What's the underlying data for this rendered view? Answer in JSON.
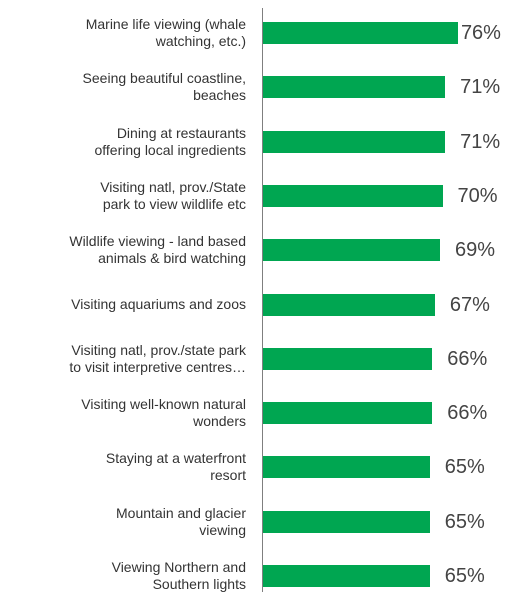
{
  "chart_data": {
    "type": "bar",
    "orientation": "horizontal",
    "categories": [
      "Marine life viewing (whale watching, etc.)",
      "Seeing beautiful coastline, beaches",
      "Dining at restaurants offering local ingredients",
      "Visiting natl, prov./State park to view wildlife etc",
      "Wildlife viewing - land based animals & bird watching",
      "Visiting aquariums and zoos",
      "Visiting natl, prov./state park to visit interpretive centres…",
      "Visiting well-known natural wonders",
      "Staying at a waterfront resort",
      "Mountain and glacier viewing",
      "Viewing Northern and Southern lights"
    ],
    "category_lines": [
      [
        "Marine life viewing (whale",
        "watching, etc.)"
      ],
      [
        "Seeing beautiful coastline,",
        "beaches"
      ],
      [
        "Dining at restaurants",
        "offering local ingredients"
      ],
      [
        "Visiting natl, prov./State",
        "park to view wildlife etc"
      ],
      [
        "Wildlife viewing - land based",
        "animals & bird watching"
      ],
      [
        "Visiting aquariums and zoos"
      ],
      [
        "Visiting natl, prov./state park",
        "to visit interpretive centres…"
      ],
      [
        "Visiting well-known natural",
        "wonders"
      ],
      [
        "Staying at a waterfront",
        "resort"
      ],
      [
        "Mountain and glacier",
        "viewing"
      ],
      [
        "Viewing Northern and",
        "Southern lights"
      ]
    ],
    "values": [
      76,
      71,
      71,
      70,
      69,
      67,
      66,
      66,
      65,
      65,
      65
    ],
    "value_labels": [
      "76%",
      "71%",
      "71%",
      "70%",
      "69%",
      "67%",
      "66%",
      "66%",
      "65%",
      "65%",
      "65%"
    ],
    "bar_color": "#00a651",
    "grid": false,
    "legend": "none"
  }
}
